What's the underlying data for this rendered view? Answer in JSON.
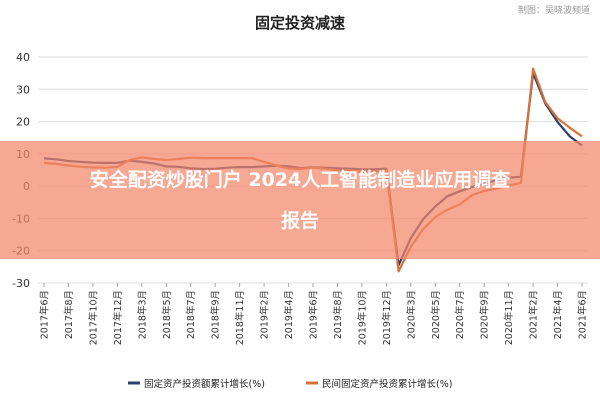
{
  "watermark": "制图：吴晓波频道",
  "ad_banner": {
    "text_line1": "安全配资炒股门户 2024人工智能制造业应用调查",
    "text_line2": "报告",
    "color": "#f4866a"
  },
  "chart_data": {
    "type": "line",
    "title": "固定投资减速",
    "xlabel": "",
    "ylabel": "",
    "ylim": [
      -30,
      40
    ],
    "y_ticks": [
      -30,
      -20,
      -10,
      0,
      10,
      20,
      30,
      40
    ],
    "grid": true,
    "legend_position": "bottom",
    "x_labels": [
      "2017年6月",
      "2017年8月",
      "2017年10月",
      "2017年12月",
      "2018年3月",
      "2018年5月",
      "2018年7月",
      "2018年9月",
      "2018年11月",
      "2019年2月",
      "2019年4月",
      "2019年6月",
      "2019年8月",
      "2019年10月",
      "2019年12月",
      "2020年3月",
      "2020年5月",
      "2020年7月",
      "2020年9月",
      "2020年11月",
      "2021年2月",
      "2021年4月",
      "2021年6月"
    ],
    "x": [
      "2017年6月",
      "2017年7月",
      "2017年8月",
      "2017年9月",
      "2017年10月",
      "2017年11月",
      "2017年12月",
      "2018年2月",
      "2018年3月",
      "2018年4月",
      "2018年5月",
      "2018年6月",
      "2018年7月",
      "2018年8月",
      "2018年9月",
      "2018年10月",
      "2018年11月",
      "2018年12月",
      "2019年2月",
      "2019年3月",
      "2019年4月",
      "2019年5月",
      "2019年6月",
      "2019年7月",
      "2019年8月",
      "2019年9月",
      "2019年10月",
      "2019年11月",
      "2019年12月",
      "2020年2月",
      "2020年3月",
      "2020年4月",
      "2020年5月",
      "2020年6月",
      "2020年7月",
      "2020年8月",
      "2020年9月",
      "2020年10月",
      "2020年11月",
      "2020年12月",
      "2021年2月",
      "2021年3月",
      "2021年4月",
      "2021年5月",
      "2021年6月"
    ],
    "series": [
      {
        "name": "固定资产投资额累计增长(%)",
        "color": "#2e3f6e",
        "values": [
          8.6,
          8.3,
          7.8,
          7.5,
          7.3,
          7.2,
          7.2,
          7.9,
          7.5,
          7.0,
          6.1,
          6.0,
          5.5,
          5.3,
          5.4,
          5.7,
          5.9,
          5.9,
          6.1,
          6.3,
          6.1,
          5.6,
          5.8,
          5.7,
          5.5,
          5.4,
          5.2,
          5.2,
          5.4,
          -24.5,
          -16.1,
          -10.3,
          -6.3,
          -3.1,
          -1.6,
          -0.3,
          0.8,
          1.8,
          2.6,
          2.9,
          35.0,
          25.6,
          19.9,
          15.4,
          12.6
        ]
      },
      {
        "name": "民间固定资产投资累计增长(%)",
        "color": "#d4723a",
        "values": [
          7.2,
          6.9,
          6.4,
          6.0,
          5.8,
          5.7,
          6.0,
          8.1,
          8.9,
          8.4,
          8.1,
          8.4,
          8.8,
          8.7,
          8.7,
          8.7,
          8.7,
          8.7,
          7.5,
          6.4,
          5.5,
          5.3,
          5.7,
          5.4,
          4.9,
          4.7,
          4.4,
          4.5,
          4.7,
          -26.4,
          -18.8,
          -13.3,
          -9.6,
          -7.3,
          -5.7,
          -2.8,
          -1.5,
          -0.7,
          0.2,
          1.0,
          36.4,
          26.0,
          21.0,
          18.1,
          15.4
        ]
      }
    ]
  }
}
